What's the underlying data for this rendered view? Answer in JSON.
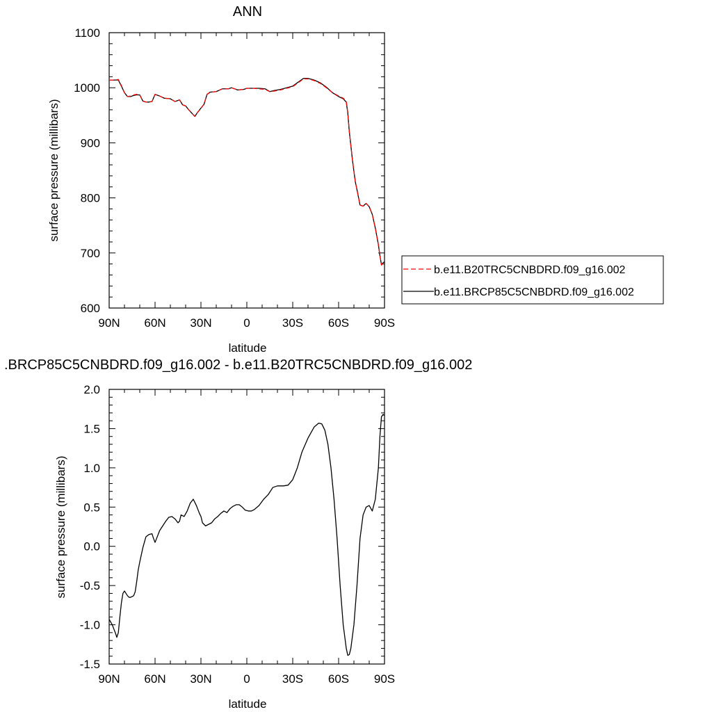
{
  "chart_data": [
    {
      "type": "line",
      "title": "ANN",
      "xlabel": "latitude",
      "ylabel": "surface pressure (millibars)",
      "xlim": [
        90,
        -90
      ],
      "ylim": [
        600,
        1100
      ],
      "x_ticks": [
        90,
        60,
        30,
        0,
        -30,
        -60,
        -90
      ],
      "x_tick_labels": [
        "90N",
        "60N",
        "30N",
        "0",
        "30S",
        "60S",
        "90S"
      ],
      "y_ticks": [
        600,
        700,
        800,
        900,
        1000,
        1100
      ],
      "y_tick_labels": [
        "600",
        "700",
        "800",
        "900",
        "1000",
        "1100"
      ],
      "legend_position": "right",
      "series": [
        {
          "name": "b.e11.B20TRC5CNBDRD.f09_g16.002",
          "color": "#ff0000",
          "dash": "dashed",
          "x": [
            90,
            86,
            84,
            82,
            80,
            78,
            76,
            74,
            72,
            70,
            68,
            66,
            64,
            62,
            60,
            57,
            54,
            50,
            47,
            44,
            42,
            40,
            38,
            36,
            34,
            32,
            30,
            28,
            26,
            24,
            20,
            16,
            12,
            10,
            6,
            2,
            0,
            -4,
            -8,
            -12,
            -15,
            -18,
            -22,
            -26,
            -30,
            -33,
            -35,
            -37,
            -40,
            -44,
            -48,
            -52,
            -56,
            -60,
            -63,
            -65,
            -66,
            -67,
            -68,
            -69,
            -70,
            -71,
            -72,
            -74,
            -76,
            -78,
            -80,
            -82,
            -84,
            -86,
            -87,
            -88,
            -89,
            -90
          ],
          "y": [
            1014,
            1014,
            1015,
            1004,
            991,
            984,
            985,
            987,
            988,
            987,
            976,
            974,
            974,
            975,
            988,
            985,
            981,
            980,
            975,
            978,
            969,
            967,
            960,
            954,
            948,
            956,
            963,
            970,
            988,
            992,
            993,
            998,
            998,
            1000,
            996,
            997,
            999,
            999,
            998,
            997,
            993,
            994,
            996,
            999,
            1002,
            1008,
            1012,
            1016,
            1016,
            1013,
            1008,
            1000,
            991,
            985,
            981,
            975,
            955,
            920,
            895,
            870,
            848,
            828,
            815,
            787,
            785,
            790,
            784,
            770,
            745,
            715,
            695,
            678,
            681,
            682
          ]
        },
        {
          "name": "b.e11.BRCP85C5CNBDRD.f09_g16.002",
          "color": "#000000",
          "dash": "solid",
          "x": [
            90,
            86,
            84,
            82,
            80,
            78,
            76,
            74,
            72,
            70,
            68,
            66,
            64,
            62,
            60,
            57,
            54,
            50,
            47,
            44,
            42,
            40,
            38,
            36,
            34,
            32,
            30,
            28,
            26,
            24,
            20,
            16,
            12,
            10,
            6,
            2,
            0,
            -4,
            -8,
            -12,
            -15,
            -18,
            -22,
            -26,
            -30,
            -33,
            -35,
            -37,
            -40,
            -44,
            -48,
            -52,
            -56,
            -60,
            -63,
            -65,
            -66,
            -67,
            -68,
            -69,
            -70,
            -71,
            -72,
            -74,
            -76,
            -78,
            -80,
            -82,
            -84,
            -86,
            -87,
            -88,
            -89,
            -90
          ],
          "y": [
            1014,
            1014,
            1014,
            1003,
            991,
            984,
            984,
            986,
            987,
            987,
            976,
            974,
            974,
            975,
            988,
            985,
            981,
            980,
            975,
            978,
            969,
            967,
            960,
            954,
            948,
            956,
            963,
            970,
            988,
            992,
            993,
            998,
            998,
            1000,
            996,
            997,
            999,
            999,
            999,
            998,
            993,
            995,
            997,
            1000,
            1003,
            1009,
            1013,
            1017,
            1017,
            1014,
            1009,
            1001,
            991,
            984,
            980,
            974,
            954,
            920,
            895,
            870,
            848,
            828,
            815,
            787,
            785,
            790,
            784,
            770,
            745,
            715,
            695,
            679,
            682,
            684
          ]
        }
      ]
    },
    {
      "type": "line",
      "title": ".BRCP85C5CNBDRD.f09_g16.002 - b.e11.B20TRC5CNBDRD.f09_g16.002",
      "xlabel": "latitude",
      "ylabel": "surface pressure (millibars)",
      "xlim": [
        90,
        -90
      ],
      "ylim": [
        -1.5,
        2.0
      ],
      "x_ticks": [
        90,
        60,
        30,
        0,
        -30,
        -60,
        -90
      ],
      "x_tick_labels": [
        "90N",
        "60N",
        "30N",
        "0",
        "30S",
        "60S",
        "90S"
      ],
      "y_ticks": [
        -1.5,
        -1.0,
        -0.5,
        0.0,
        0.5,
        1.0,
        1.5,
        2.0
      ],
      "y_tick_labels": [
        "-1.5",
        "-1.0",
        "-0.5",
        "0.0",
        "0.5",
        "1.0",
        "1.5",
        "2.0"
      ],
      "series": [
        {
          "color": "#000000",
          "dash": "solid",
          "x": [
            90,
            88,
            86,
            85,
            84,
            83,
            82,
            81,
            80,
            79,
            78,
            77,
            76,
            75,
            74,
            73,
            72,
            71,
            70,
            68,
            66,
            64,
            62,
            61,
            60,
            59,
            57,
            55,
            53,
            51,
            49,
            47,
            45,
            44,
            43,
            41,
            39,
            37,
            35,
            33,
            31,
            30,
            29,
            27,
            25,
            23,
            21,
            19,
            17,
            15,
            13,
            11,
            9,
            7,
            5,
            3,
            1,
            -1,
            -3,
            -5,
            -8,
            -11,
            -14,
            -17,
            -20,
            -24,
            -27,
            -30,
            -33,
            -36,
            -40,
            -44,
            -47,
            -49,
            -51,
            -53,
            -55,
            -57,
            -59,
            -61,
            -63,
            -65,
            -66,
            -67,
            -68,
            -70,
            -72,
            -74,
            -76,
            -78,
            -80,
            -82,
            -84,
            -86,
            -87,
            -88,
            -89,
            -90
          ],
          "y": [
            -0.93,
            -1.0,
            -1.1,
            -1.16,
            -1.1,
            -0.9,
            -0.72,
            -0.6,
            -0.57,
            -0.6,
            -0.63,
            -0.65,
            -0.65,
            -0.64,
            -0.63,
            -0.58,
            -0.45,
            -0.3,
            -0.2,
            -0.02,
            0.12,
            0.15,
            0.16,
            0.1,
            0.05,
            0.1,
            0.2,
            0.26,
            0.32,
            0.37,
            0.38,
            0.35,
            0.3,
            0.32,
            0.4,
            0.38,
            0.45,
            0.55,
            0.6,
            0.52,
            0.42,
            0.38,
            0.3,
            0.26,
            0.28,
            0.3,
            0.35,
            0.38,
            0.42,
            0.45,
            0.43,
            0.48,
            0.51,
            0.53,
            0.53,
            0.5,
            0.46,
            0.45,
            0.45,
            0.47,
            0.52,
            0.6,
            0.66,
            0.75,
            0.77,
            0.77,
            0.78,
            0.85,
            1.0,
            1.2,
            1.38,
            1.52,
            1.57,
            1.56,
            1.48,
            1.3,
            1.0,
            0.6,
            0.1,
            -0.5,
            -1.0,
            -1.3,
            -1.39,
            -1.38,
            -1.3,
            -1.0,
            -0.5,
            0.1,
            0.4,
            0.5,
            0.52,
            0.45,
            0.6,
            1.0,
            1.4,
            1.65,
            1.68,
            1.67
          ]
        }
      ]
    }
  ]
}
